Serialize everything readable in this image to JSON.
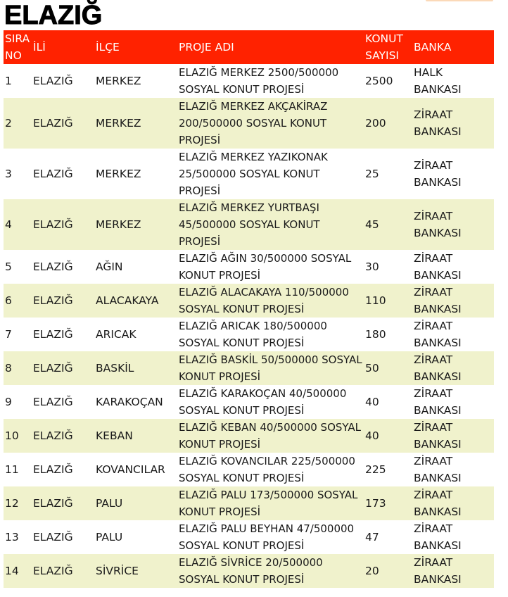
{
  "title": "ELAZIĞ",
  "headers": [
    "SIRA NO",
    "İLİ",
    "İLÇE",
    "PROJE ADI",
    "KONUT SAYISI",
    "BANKA"
  ],
  "rows": [
    {
      "no": "1",
      "il": "ELAZIĞ",
      "ilce": "MERKEZ",
      "proje": "ELAZIĞ MERKEZ 2500/500000 SOSYAL KONUT PROJESİ",
      "konut": "2500",
      "banka": "HALK BANKASI"
    },
    {
      "no": "2",
      "il": "ELAZIĞ",
      "ilce": "MERKEZ",
      "proje": "ELAZIĞ MERKEZ AKÇAKİRAZ 200/500000 SOSYAL KONUT PROJESİ",
      "konut": "200",
      "banka": "ZİRAAT BANKASI"
    },
    {
      "no": "3",
      "il": "ELAZIĞ",
      "ilce": "MERKEZ",
      "proje": "ELAZIĞ MERKEZ YAZIKONAK 25/500000 SOSYAL KONUT PROJESİ",
      "konut": "25",
      "banka": "ZİRAAT BANKASI"
    },
    {
      "no": "4",
      "il": "ELAZIĞ",
      "ilce": "MERKEZ",
      "proje": "ELAZIĞ MERKEZ YURTBAŞI 45/500000 SOSYAL KONUT PROJESİ",
      "konut": "45",
      "banka": "ZİRAAT BANKASI"
    },
    {
      "no": "5",
      "il": "ELAZIĞ",
      "ilce": "AĞIN",
      "proje": "ELAZIĞ AĞIN 30/500000 SOSYAL KONUT PROJESİ",
      "konut": "30",
      "banka": "ZİRAAT BANKASI"
    },
    {
      "no": "6",
      "il": "ELAZIĞ",
      "ilce": "ALACAKAYA",
      "proje": "ELAZIĞ ALACAKAYA 110/500000 SOSYAL KONUT PROJESİ",
      "konut": "110",
      "banka": "ZİRAAT BANKASI"
    },
    {
      "no": "7",
      "il": "ELAZIĞ",
      "ilce": "ARICAK",
      "proje": "ELAZIĞ ARICAK 180/500000 SOSYAL KONUT PROJESİ",
      "konut": "180",
      "banka": "ZİRAAT BANKASI"
    },
    {
      "no": "8",
      "il": "ELAZIĞ",
      "ilce": "BASKİL",
      "proje": "ELAZIĞ BASKİL 50/500000 SOSYAL KONUT PROJESİ",
      "konut": "50",
      "banka": "ZİRAAT BANKASI"
    },
    {
      "no": "9",
      "il": "ELAZIĞ",
      "ilce": "KARAKOÇAN",
      "proje": "ELAZIĞ KARAKOÇAN 40/500000 SOSYAL KONUT PROJESİ",
      "konut": "40",
      "banka": "ZİRAAT BANKASI"
    },
    {
      "no": "10",
      "il": "ELAZIĞ",
      "ilce": "KEBAN",
      "proje": "ELAZIĞ KEBAN 40/500000 SOSYAL KONUT PROJESİ",
      "konut": "40",
      "banka": "ZİRAAT BANKASI"
    },
    {
      "no": "11",
      "il": "ELAZIĞ",
      "ilce": "KOVANCILAR",
      "proje": "ELAZIĞ KOVANCILAR 225/500000 SOSYAL KONUT PROJESİ",
      "konut": "225",
      "banka": "ZİRAAT BANKASI"
    },
    {
      "no": "12",
      "il": "ELAZIĞ",
      "ilce": "PALU",
      "proje": "ELAZIĞ PALU 173/500000 SOSYAL KONUT PROJESİ",
      "konut": "173",
      "banka": "ZİRAAT BANKASI"
    },
    {
      "no": "13",
      "il": "ELAZIĞ",
      "ilce": "PALU",
      "proje": "ELAZIĞ PALU BEYHAN 47/500000 SOSYAL KONUT PROJESİ",
      "konut": "47",
      "banka": "ZİRAAT BANKASI"
    },
    {
      "no": "14",
      "il": "ELAZIĞ",
      "ilce": "SİVRİCE",
      "proje": "ELAZIĞ SİVRİCE 20/500000 SOSYAL KONUT PROJESİ",
      "konut": "20",
      "banka": "ZİRAAT BANKASI"
    }
  ],
  "colors": {
    "header_bg": "#ff2200",
    "alt_row_bg": "#f0f2cc"
  }
}
